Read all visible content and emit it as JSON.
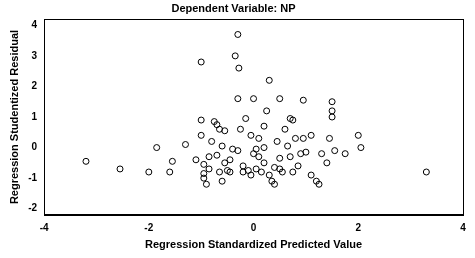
{
  "chart_data": {
    "type": "scatter",
    "title": "Dependent Variable: NP",
    "x_label": "Regression Standardized Predicted Value",
    "y_label": "Regression Studentized Residual",
    "x": [
      -3.2,
      -2.55,
      -1.85,
      -2.0,
      -1.55,
      -1.6,
      -1.3,
      -1.0,
      -1.0,
      -1.0,
      -0.95,
      -0.95,
      -0.95,
      -0.9,
      -0.85,
      -0.8,
      -0.75,
      -0.7,
      -0.65,
      -0.7,
      -0.65,
      -0.6,
      -0.55,
      -0.55,
      -0.5,
      -0.45,
      -0.4,
      -0.35,
      -0.3,
      -0.28,
      -0.3,
      -0.3,
      -0.25,
      -0.2,
      -0.2,
      -0.15,
      -0.1,
      -0.05,
      0.0,
      -0.05,
      0.0,
      0.05,
      0.05,
      0.1,
      0.1,
      0.15,
      0.2,
      0.2,
      0.25,
      0.3,
      0.3,
      0.35,
      0.4,
      0.45,
      0.5,
      0.5,
      0.5,
      0.55,
      0.6,
      0.65,
      0.7,
      0.75,
      0.7,
      0.75,
      0.8,
      0.85,
      0.9,
      0.95,
      1.0,
      1.1,
      1.2,
      1.25,
      1.3,
      1.4,
      1.45,
      1.5,
      1.5,
      1.5,
      1.55,
      1.75,
      2.0,
      2.05,
      3.3,
      -1.1,
      -0.85,
      0.2,
      0.4,
      -0.45,
      -0.6,
      1.1,
      0.95
    ],
    "values": [
      -0.45,
      -0.7,
      0.0,
      -0.8,
      -0.45,
      -0.8,
      0.1,
      2.8,
      0.9,
      0.4,
      -0.55,
      -0.85,
      -1.0,
      -1.2,
      -0.7,
      0.2,
      0.85,
      0.75,
      0.6,
      -0.25,
      -0.8,
      -1.1,
      0.55,
      -0.5,
      -0.75,
      -0.8,
      -0.05,
      3.0,
      3.7,
      2.6,
      1.6,
      -0.1,
      0.6,
      -0.6,
      -0.8,
      0.95,
      -0.75,
      0.4,
      -0.2,
      -0.9,
      1.6,
      -0.7,
      -0.05,
      0.3,
      -0.3,
      -0.8,
      -0.5,
      0.7,
      1.2,
      2.2,
      -0.9,
      -1.1,
      -1.2,
      0.2,
      1.6,
      -0.35,
      -0.7,
      -0.8,
      0.6,
      0.05,
      0.95,
      0.9,
      -0.3,
      -0.8,
      0.3,
      -0.6,
      -0.2,
      1.55,
      -0.15,
      0.4,
      -1.1,
      -1.2,
      -0.2,
      -0.5,
      0.3,
      1.5,
      1.2,
      1.0,
      -0.1,
      -0.2,
      0.4,
      0.0,
      -0.8,
      -0.4,
      -0.3,
      0.0,
      -0.65,
      -0.4,
      0.05,
      -0.9,
      0.3
    ],
    "color": "#000000",
    "marker": "circle",
    "xlim": [
      -4,
      4
    ],
    "xticks": [
      -4,
      -2,
      0,
      2,
      4
    ],
    "ylim": [
      -2.2,
      4.2
    ],
    "yticks": [
      -2,
      -1,
      0,
      1,
      2,
      3,
      4
    ],
    "grid": false
  }
}
